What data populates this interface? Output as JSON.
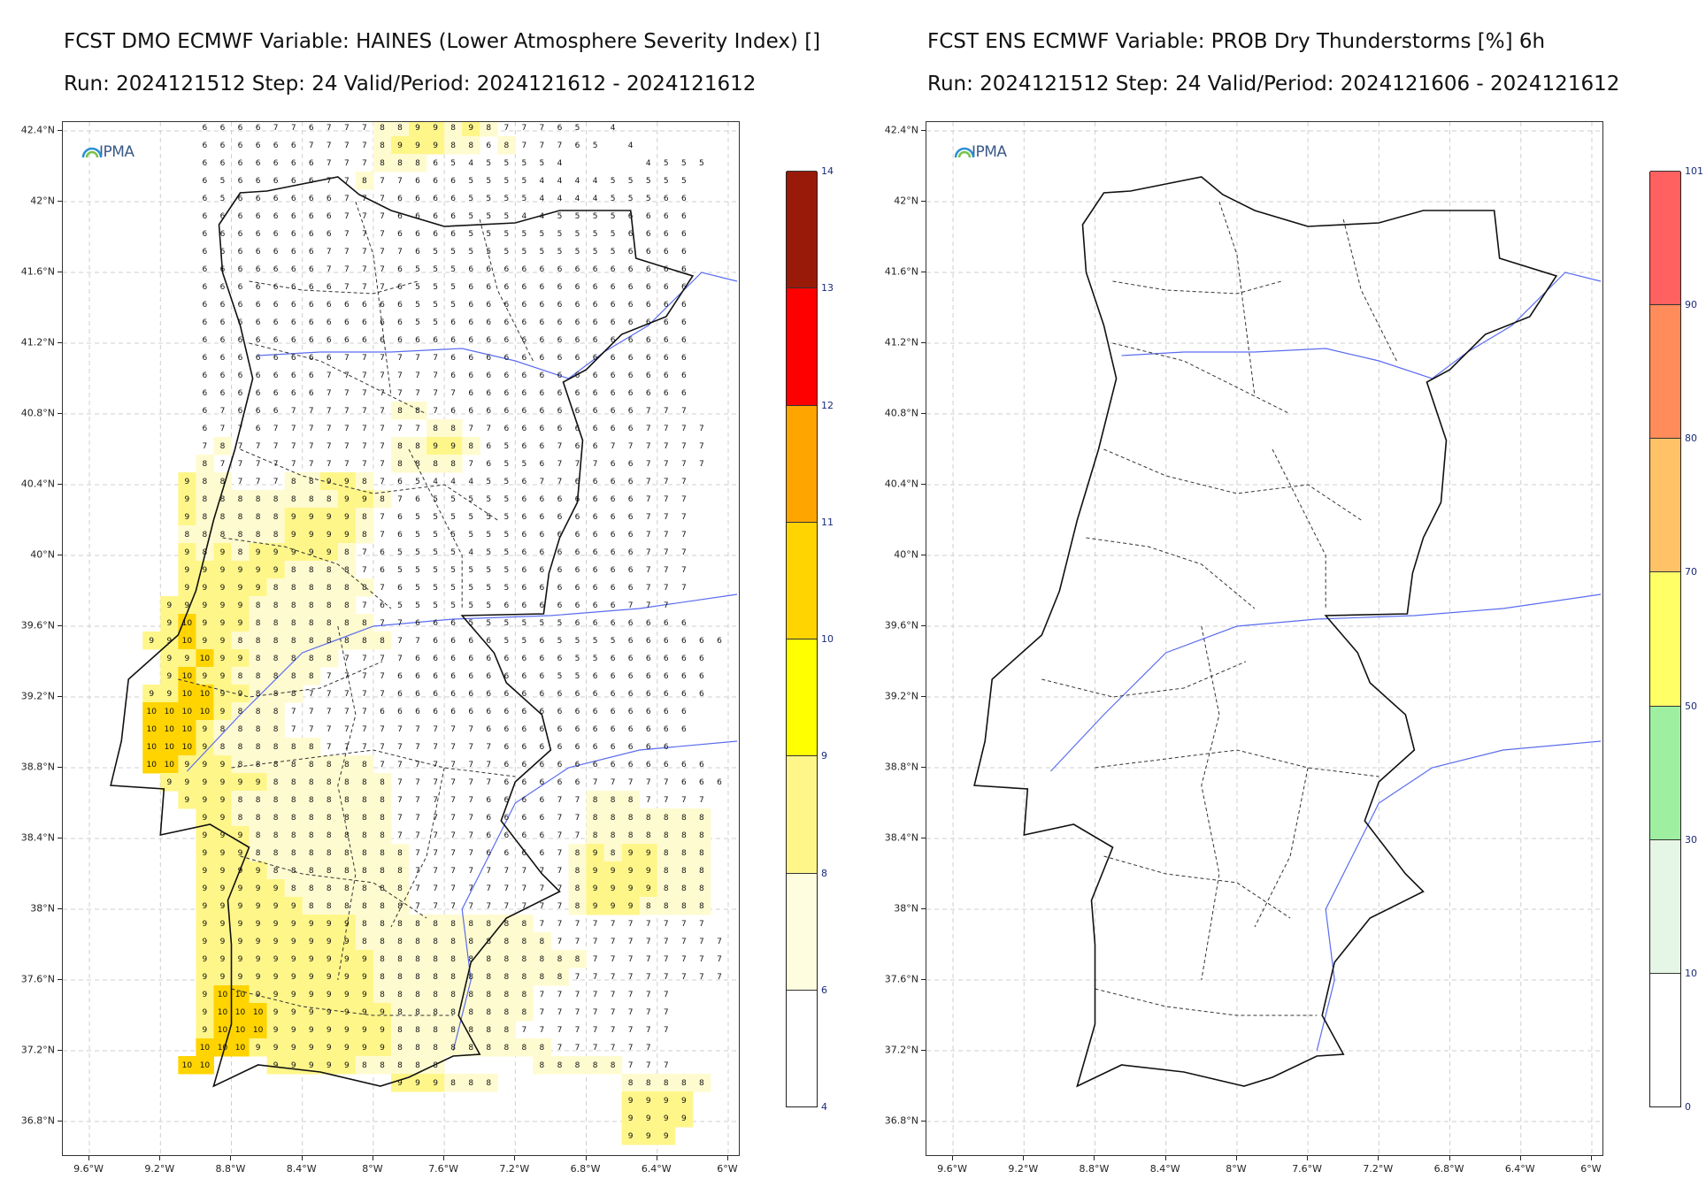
{
  "left_panel": {
    "title_line1": "FCST DMO ECMWF Variable: HAINES (Lower Atmosphere Severity Index) []",
    "title_line2": "Run: 2024121512 Step: 24 Valid/Period: 2024121612 - 2024121612",
    "logo_text": "IPMA",
    "colorbar": {
      "labels": [
        "4",
        "6",
        "8",
        "9",
        "10",
        "11",
        "12",
        "13",
        "14"
      ],
      "colors": [
        "#ffffff",
        "#fffde0",
        "#fff68a",
        "#ffff00",
        "#ffd400",
        "#ffa500",
        "#ff0000",
        "#9a1a0a"
      ]
    }
  },
  "right_panel": {
    "title_line1": "FCST ENS ECMWF Variable: PROB Dry Thunderstorms [%] 6h",
    "title_line2": "Run: 2024121512 Step: 24 Valid/Period: 2024121606 - 2024121612",
    "logo_text": "IPMA",
    "colorbar": {
      "labels": [
        "0",
        "10",
        "30",
        "50",
        "70",
        "80",
        "90",
        "101"
      ],
      "colors": [
        "#ffffff",
        "#e6f6e6",
        "#9ef0a0",
        "#ffff66",
        "#ffc266",
        "#ff8c5a",
        "#ff6060"
      ]
    }
  },
  "axes": {
    "lat_labels": [
      "42.4°N",
      "42°N",
      "41.6°N",
      "41.2°N",
      "40.8°N",
      "40.4°N",
      "40°N",
      "39.6°N",
      "39.2°N",
      "38.8°N",
      "38.4°N",
      "38°N",
      "37.6°N",
      "37.2°N",
      "36.8°N"
    ],
    "lon_labels": [
      "9.6°W",
      "9.2°W",
      "8.8°W",
      "8.4°W",
      "8°W",
      "7.6°W",
      "7.2°W",
      "6.8°W",
      "6.4°W",
      "6°W"
    ]
  },
  "haines_grid": {
    "lon_start": -9.25,
    "lat_start": 42.42,
    "step": 0.1,
    "rows": [
      "...6666776777889989877765 4",
      "...66666677778999886877765 4",
      "...666666677788865455554....4555",
      "...6566666778776665555444455555",
      "...6566666677766665555444455566",
      "...6666666677766665554455556666",
      "...6666666677766665555555556666",
      "...6666666777776555555555556666",
      "...6666666777765556666666666666",
      "...6666666677765556666666666666",
      "...6666666666665556666666666666",
      "...6666666666665566666666666666",
      "...6666666666666666666666666666",
      "...6666666677777766666666666666",
      "...6666666777777766666666666666",
      "...6666666777777776666666666666",
      "...6766677777788766666666666777",
      "...67767777777778877666666667777",
      "...78777777777889986566766777777",
      "...87777777777888876556777667777",
      "..98877788998765444556776666777",
      "..98888888899876555556666666777",
      "..98888899998765555556666666777",
      "..88888899998765555556666666777",
      "..98989999987655554556666666777",
      "..99999988887655555556666666777",
      "..99999888888765555556666666777",
      ".99999888888765555556666666777",
      ".9109998888888776665555556666666",
      "9910998888888887766665565555666666",
      ".99109988888777766666666655666666",
      ".91099888887777666666666556666666",
      "9910109988877777666666666666666666",
      "10101010988877777666666666666666666",
      "1010109888877777777777666666666666",
      "101010988888877777777776666666666",
      "1010999888888887777777666666666666",
      ".99999988888887777776666677777666",
      "..999888888888777776666778887777",
      "...99888888888777776666778888888",
      "...99988888888777776666778888888",
      "...99988888888877776666789899888",
      "...99998888888877777777789999888",
      "...99999888888877777777789999888",
      "...99999988888877777777789998888",
      "...99999999988888888887777777777",
      "...999999999888888888887777777777",
      "...999999999988888888888877777777",
      "...999999999988888888888777777777",
      "...91010999999988888888877777777",
      "...910101099999998888888877777777",
      "...910101099999998888888777777777",
      "...10101099999999888888888777777",
      "..1010...9999988888.....88888777",
      "..............999888.......88888",
      "...........................9999",
      "...........................9999",
      "...........................999"
    ]
  }
}
